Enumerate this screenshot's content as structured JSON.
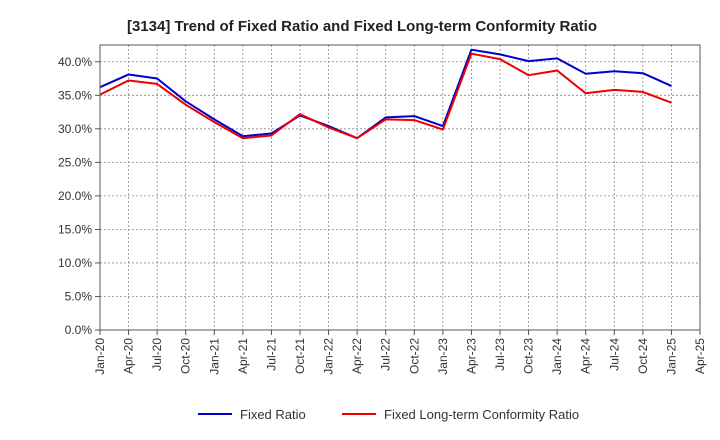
{
  "chart_data": {
    "type": "line",
    "title": "[3134]  Trend of Fixed Ratio and Fixed Long-term Conformity Ratio",
    "xlabel": "",
    "ylabel": "",
    "ylim": [
      0,
      42.5
    ],
    "x_tick_labels": [
      "Jan-20",
      "Apr-20",
      "Jul-20",
      "Oct-20",
      "Jan-21",
      "Apr-21",
      "Jul-21",
      "Oct-21",
      "Jan-22",
      "Apr-22",
      "Jul-22",
      "Oct-22",
      "Jan-23",
      "Apr-23",
      "Jul-23",
      "Oct-23",
      "Jan-24",
      "Apr-24",
      "Jul-24",
      "Oct-24",
      "Jan-25",
      "Apr-25"
    ],
    "y_tick_labels": [
      "0.0%",
      "5.0%",
      "10.0%",
      "15.0%",
      "20.0%",
      "25.0%",
      "30.0%",
      "35.0%",
      "40.0%"
    ],
    "y_ticks": [
      0,
      5,
      10,
      15,
      20,
      25,
      30,
      35,
      40
    ],
    "x": [
      "Jan-20",
      "Apr-20",
      "Jul-20",
      "Oct-20",
      "Jan-21",
      "Apr-21",
      "Jul-21",
      "Oct-21",
      "Jan-22",
      "Apr-22",
      "Jul-22",
      "Oct-22",
      "Jan-23",
      "Apr-23",
      "Jul-23",
      "Oct-23",
      "Jan-24",
      "Apr-24",
      "Jul-24",
      "Oct-24",
      "Jan-25"
    ],
    "series": [
      {
        "name": "Fixed Ratio",
        "color": "#0000cc",
        "values": [
          36.2,
          38.1,
          37.5,
          34.1,
          31.4,
          28.9,
          29.3,
          32.0,
          30.4,
          28.6,
          31.7,
          31.9,
          30.4,
          41.8,
          41.1,
          40.1,
          40.5,
          38.2,
          38.6,
          38.3,
          36.4
        ]
      },
      {
        "name": "Fixed Long-term Conformity Ratio",
        "color": "#ee0000",
        "values": [
          35.1,
          37.2,
          36.7,
          33.6,
          31.0,
          28.6,
          29.0,
          32.2,
          30.2,
          28.6,
          31.4,
          31.3,
          29.9,
          41.2,
          40.4,
          38.0,
          38.7,
          35.3,
          35.8,
          35.5,
          33.9
        ]
      }
    ],
    "grid": true,
    "legend_position": "bottom"
  }
}
